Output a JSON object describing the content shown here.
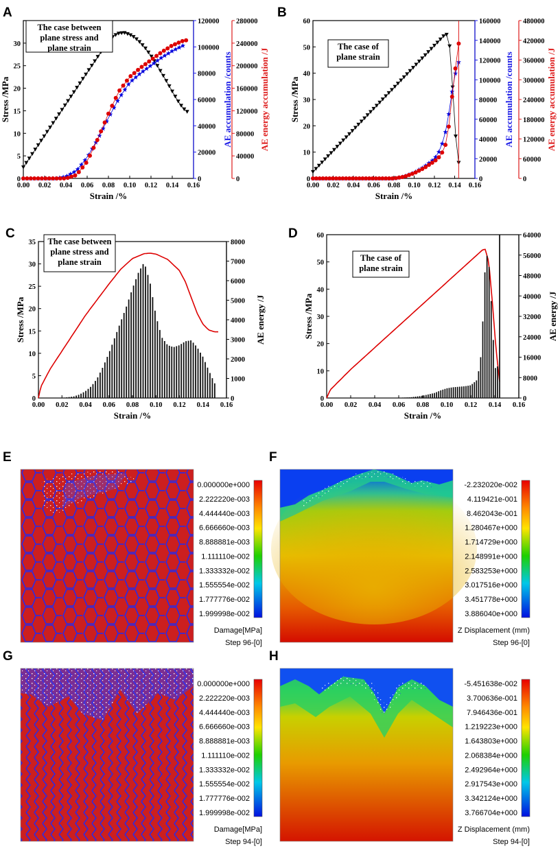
{
  "panels": {
    "A": {
      "label": "A"
    },
    "B": {
      "label": "B"
    },
    "C": {
      "label": "C"
    },
    "D": {
      "label": "D"
    },
    "E": {
      "label": "E"
    },
    "F": {
      "label": "F"
    },
    "G": {
      "label": "G"
    },
    "H": {
      "label": "H"
    }
  },
  "chart_data": [
    {
      "id": "A",
      "type": "scatter",
      "annotation": [
        "The case between",
        "plane stress and",
        "plane strain"
      ],
      "xlabel": "Strain /%",
      "ylabel": "Stress /MPa",
      "y2label": "AE accumulation /counts",
      "y3label": "AE energy accumulation /J",
      "xlim": [
        0,
        0.16
      ],
      "ylim": [
        0,
        35
      ],
      "y2lim": [
        0,
        120000
      ],
      "y3lim": [
        0,
        280000
      ],
      "x_ticks": [
        "0.00",
        "0.02",
        "0.04",
        "0.06",
        "0.08",
        "0.10",
        "0.12",
        "0.14",
        "0.16"
      ],
      "y_ticks": [
        "0",
        "5",
        "10",
        "15",
        "20",
        "25",
        "30"
      ],
      "y2_ticks": [
        "0",
        "20000",
        "40000",
        "60000",
        "80000",
        "100000",
        "120000"
      ],
      "y3_ticks": [
        "0",
        "40000",
        "80000",
        "120000",
        "160000",
        "200000",
        "240000",
        "280000"
      ],
      "series": [
        {
          "name": "Stress",
          "color": "#000000",
          "marker": "triangle-down",
          "axis": "y",
          "x": [
            0,
            0.01,
            0.02,
            0.03,
            0.04,
            0.05,
            0.06,
            0.07,
            0.08,
            0.085,
            0.09,
            0.095,
            0.1,
            0.105,
            0.11,
            0.115,
            0.12,
            0.125,
            0.13,
            0.135,
            0.14,
            0.145,
            0.15,
            0.154
          ],
          "y": [
            2.5,
            6,
            9.5,
            13,
            16.5,
            20,
            23.5,
            27,
            30.5,
            31.6,
            32.2,
            32.3,
            31.9,
            31.2,
            30.1,
            28.8,
            27.2,
            25.4,
            23.4,
            21.4,
            19.3,
            17.3,
            15.6,
            14.8
          ]
        },
        {
          "name": "AE accumulation",
          "color": "#0000dd",
          "marker": "star",
          "axis": "y2",
          "x": [
            0,
            0.03,
            0.04,
            0.05,
            0.06,
            0.07,
            0.08,
            0.09,
            0.1,
            0.11,
            0.12,
            0.13,
            0.14,
            0.15
          ],
          "y": [
            0,
            0,
            1500,
            6000,
            16000,
            30000,
            46000,
            61000,
            73000,
            80000,
            86000,
            92000,
            97000,
            101000
          ]
        },
        {
          "name": "AE energy accumulation",
          "color": "#dd0000",
          "marker": "circle",
          "axis": "y3",
          "x": [
            0,
            0.04,
            0.05,
            0.06,
            0.07,
            0.08,
            0.09,
            0.1,
            0.11,
            0.12,
            0.13,
            0.14,
            0.15,
            0.153
          ],
          "y": [
            0,
            0,
            6000,
            30000,
            70000,
            115000,
            155000,
            180000,
            196000,
            210000,
            224000,
            236000,
            244000,
            245000
          ]
        }
      ]
    },
    {
      "id": "B",
      "type": "scatter",
      "annotation": [
        "The case of",
        "plane strain"
      ],
      "xlabel": "Strain /%",
      "ylabel": "Stress /MPa",
      "y2label": "AE accumulation /counts",
      "y3label": "AE energy accumulation /J",
      "xlim": [
        0,
        0.16
      ],
      "ylim": [
        0,
        60
      ],
      "y2lim": [
        0,
        160000
      ],
      "y3lim": [
        0,
        480000
      ],
      "x_ticks": [
        "0.00",
        "0.02",
        "0.04",
        "0.06",
        "0.08",
        "0.10",
        "0.12",
        "0.14",
        "0.16"
      ],
      "y_ticks": [
        "0",
        "10",
        "20",
        "30",
        "40",
        "50",
        "60"
      ],
      "y2_ticks": [
        "0",
        "20000",
        "40000",
        "60000",
        "80000",
        "100000",
        "120000",
        "140000",
        "160000"
      ],
      "y3_ticks": [
        "0",
        "60000",
        "120000",
        "180000",
        "240000",
        "300000",
        "360000",
        "420000",
        "480000"
      ],
      "series": [
        {
          "name": "Stress",
          "color": "#000000",
          "marker": "triangle-down",
          "axis": "y",
          "x": [
            0,
            0.02,
            0.04,
            0.06,
            0.08,
            0.1,
            0.12,
            0.13,
            0.133,
            0.136,
            0.139,
            0.142,
            0.144
          ],
          "y": [
            2.5,
            10.5,
            18.5,
            26.5,
            34.5,
            42.5,
            50.5,
            54.5,
            54.8,
            48,
            28,
            10,
            6
          ]
        },
        {
          "name": "AE accumulation",
          "color": "#0000dd",
          "marker": "star",
          "axis": "y2",
          "x": [
            0,
            0.08,
            0.09,
            0.1,
            0.11,
            0.12,
            0.125,
            0.13,
            0.135,
            0.138,
            0.141,
            0.144
          ],
          "y": [
            0,
            0,
            2000,
            6000,
            12000,
            20000,
            28000,
            42000,
            70000,
            92000,
            108000,
            118000
          ]
        },
        {
          "name": "AE energy accumulation",
          "color": "#dd0000",
          "marker": "circle",
          "axis": "y3",
          "x": [
            0,
            0.08,
            0.09,
            0.1,
            0.11,
            0.12,
            0.125,
            0.13,
            0.133,
            0.136,
            0.139,
            0.142,
            0.144
          ],
          "y": [
            0,
            0,
            5000,
            16000,
            32000,
            52000,
            66000,
            90000,
            130000,
            200000,
            300000,
            360000,
            410000
          ]
        }
      ]
    },
    {
      "id": "C",
      "type": "bar",
      "annotation": [
        "The case between",
        "plane stress and",
        "plane strain"
      ],
      "xlabel": "Strain /%",
      "ylabel": "Stress /MPa",
      "y2label": "AE energy /J",
      "xlim": [
        0,
        0.16
      ],
      "ylim": [
        0,
        35
      ],
      "y2lim": [
        0,
        8000
      ],
      "x_ticks": [
        "0.00",
        "0.02",
        "0.04",
        "0.06",
        "0.08",
        "0.10",
        "0.12",
        "0.14",
        "0.16"
      ],
      "y_ticks": [
        "0",
        "5",
        "10",
        "15",
        "20",
        "25",
        "30",
        "35"
      ],
      "y2_ticks": [
        "0",
        "1000",
        "2000",
        "3000",
        "4000",
        "5000",
        "6000",
        "7000",
        "8000"
      ],
      "series": [
        {
          "name": "Stress",
          "type": "line",
          "color": "#dd0000",
          "axis": "y",
          "x": [
            0,
            0.002,
            0.01,
            0.02,
            0.03,
            0.04,
            0.05,
            0.06,
            0.07,
            0.08,
            0.09,
            0.095,
            0.1,
            0.11,
            0.12,
            0.125,
            0.13,
            0.135,
            0.14,
            0.145,
            0.15,
            0.153
          ],
          "y": [
            0,
            2.5,
            6.5,
            10.5,
            14.5,
            18.5,
            22,
            25.5,
            28.8,
            31.2,
            32.3,
            32.4,
            32.2,
            31,
            28.5,
            26,
            22.5,
            19,
            16.5,
            15.2,
            14.8,
            14.8
          ]
        },
        {
          "name": "AE energy",
          "type": "bar",
          "color": "#111111",
          "axis": "y2",
          "x": [
            0.02,
            0.025,
            0.03,
            0.035,
            0.04,
            0.045,
            0.05,
            0.055,
            0.06,
            0.065,
            0.07,
            0.075,
            0.08,
            0.085,
            0.09,
            0.095,
            0.1,
            0.105,
            0.11,
            0.115,
            0.12,
            0.125,
            0.13,
            0.135,
            0.14,
            0.145,
            0.15
          ],
          "y": [
            10,
            40,
            80,
            180,
            350,
            600,
            1000,
            1600,
            2300,
            3100,
            3900,
            4700,
            5600,
            6400,
            6950,
            5900,
            4200,
            3100,
            2700,
            2600,
            2700,
            2900,
            2950,
            2600,
            2100,
            1400,
            750
          ]
        }
      ]
    },
    {
      "id": "D",
      "type": "bar",
      "annotation": [
        "The case of",
        "plane strain"
      ],
      "xlabel": "Strain /%",
      "ylabel": "Stress /MPa",
      "y2label": "AE energy /J",
      "xlim": [
        0,
        0.16
      ],
      "ylim": [
        0,
        60
      ],
      "y2lim": [
        0,
        64000
      ],
      "x_ticks": [
        "0.00",
        "0.02",
        "0.04",
        "0.06",
        "0.08",
        "0.10",
        "0.12",
        "0.14",
        "0.16"
      ],
      "y_ticks": [
        "0",
        "10",
        "20",
        "30",
        "40",
        "50",
        "60"
      ],
      "y2_ticks": [
        "0",
        "8000",
        "16000",
        "24000",
        "32000",
        "40000",
        "48000",
        "56000",
        "64000"
      ],
      "series": [
        {
          "name": "Stress",
          "type": "line",
          "color": "#dd0000",
          "axis": "y",
          "x": [
            0,
            0.003,
            0.02,
            0.04,
            0.06,
            0.08,
            0.1,
            0.12,
            0.13,
            0.132,
            0.135,
            0.138,
            0.141,
            0.144
          ],
          "y": [
            0,
            3,
            10.5,
            18.5,
            26.5,
            34.5,
            42.5,
            50.5,
            54.5,
            54.6,
            50,
            35,
            18,
            6
          ]
        },
        {
          "name": "AE energy",
          "type": "bar",
          "color": "#111111",
          "axis": "y2",
          "x": [
            0.06,
            0.07,
            0.08,
            0.09,
            0.095,
            0.1,
            0.105,
            0.11,
            0.115,
            0.12,
            0.125,
            0.128,
            0.13,
            0.132,
            0.134,
            0.136,
            0.138,
            0.14,
            0.142,
            0.144
          ],
          "y": [
            100,
            300,
            900,
            2000,
            3000,
            3800,
            4200,
            4400,
            4600,
            5000,
            7000,
            14000,
            30000,
            52000,
            57000,
            48000,
            28000,
            14000,
            5000,
            64000
          ]
        }
      ]
    }
  ],
  "contours": {
    "E": {
      "title": "Damage[MPa]",
      "step": "Step 96-[0]",
      "values": [
        "0.000000e+000",
        "2.222220e-003",
        "4.444440e-003",
        "6.666660e-003",
        "8.888881e-003",
        "1.111110e-002",
        "1.333332e-002",
        "1.555554e-002",
        "1.777776e-002",
        "1.999998e-002"
      ]
    },
    "F": {
      "title": "Z Displacement (mm)",
      "step": "Step 96-[0]",
      "values": [
        "-2.232020e-002",
        "4.119421e-001",
        "8.462043e-001",
        "1.280467e+000",
        "1.714729e+000",
        "2.148991e+000",
        "2.583253e+000",
        "3.017516e+000",
        "3.451778e+000",
        "3.886040e+000"
      ]
    },
    "G": {
      "title": "Damage[MPa]",
      "step": "Step 94-[0]",
      "values": [
        "0.000000e+000",
        "2.222220e-003",
        "4.444440e-003",
        "6.666660e-003",
        "8.888881e-003",
        "1.111110e-002",
        "1.333332e-002",
        "1.555554e-002",
        "1.777776e-002",
        "1.999998e-002"
      ]
    },
    "H": {
      "title": "Z Displacement (mm)",
      "step": "Step 94-[0]",
      "values": [
        "-5.451638e-002",
        "3.700636e-001",
        "7.946436e-001",
        "1.219223e+000",
        "1.643803e+000",
        "2.068384e+000",
        "2.492964e+000",
        "2.917543e+000",
        "3.342124e+000",
        "3.766704e+000"
      ]
    }
  },
  "colors": {
    "red": "#cc1a1a",
    "blue": "#1a1aee",
    "black": "#000000"
  }
}
